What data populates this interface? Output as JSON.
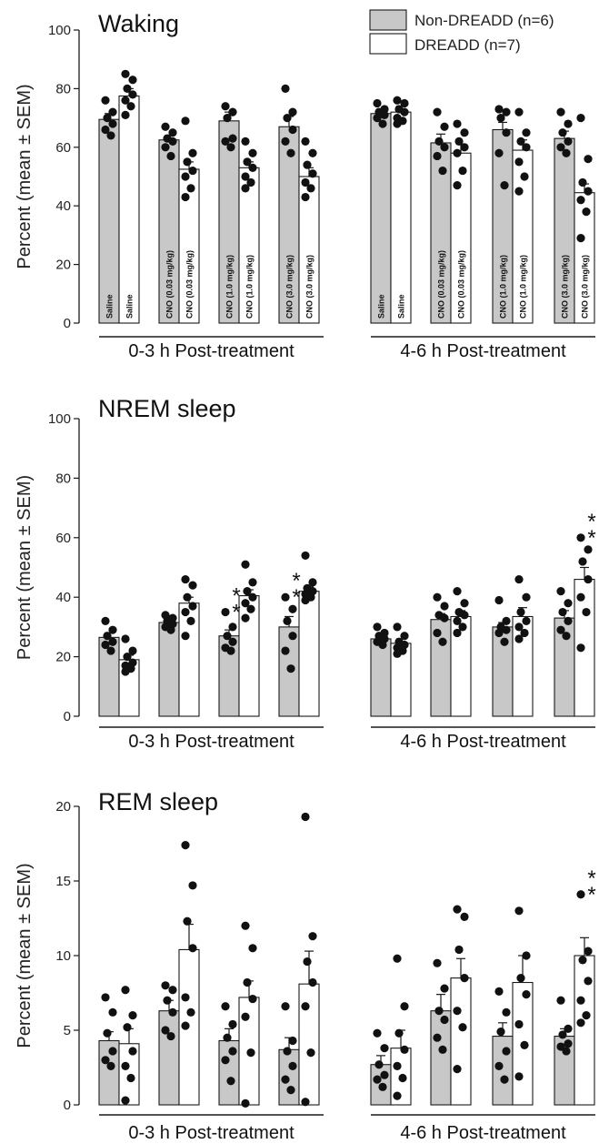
{
  "legend": [
    {
      "key": "ctrl",
      "label": "Non-DREADD (n=6)",
      "color": "#c8c8c8"
    },
    {
      "key": "dreadd",
      "label": "DREADD (n=7)",
      "color": "#ffffff"
    }
  ],
  "group_labels": [
    "0-3 h Post-treatment",
    "4-6 h Post-treatment"
  ],
  "treatments": [
    "Saline",
    "CNO (0.03 mg/kg)",
    "CNO (1.0 mg/kg)",
    "CNO (3.0 mg/kg)"
  ],
  "significance_marker": "**",
  "chart_data": [
    {
      "type": "bar",
      "title": "Waking",
      "ylabel": "Percent (mean ± SEM)",
      "ylim": [
        0,
        100
      ],
      "yticks": [
        0,
        20,
        40,
        60,
        80,
        100
      ],
      "show_treatment_labels": true,
      "series": [
        {
          "name": "Non-DREADD (n=6)",
          "key": "ctrl",
          "values": [
            69.5,
            62.5,
            69,
            67,
            71.5,
            61.5,
            66,
            63
          ],
          "sem": [
            2,
            1.5,
            3,
            3.5,
            1.5,
            3,
            2.5,
            2.5
          ],
          "points": [
            [
              76,
              72,
              70,
              68,
              66,
              64
            ],
            [
              67,
              65,
              63,
              62,
              60,
              57
            ],
            [
              74,
              72,
              70,
              63,
              62,
              60
            ],
            [
              80,
              72,
              70,
              66,
              62,
              58
            ],
            [
              75,
              73,
              72,
              71,
              70,
              68
            ],
            [
              72,
              67,
              62,
              60,
              57,
              52
            ],
            [
              73,
              72,
              70,
              65,
              58,
              47
            ],
            [
              72,
              68,
              65,
              62,
              60,
              58
            ]
          ]
        },
        {
          "name": "DREADD (n=7)",
          "key": "dreadd",
          "values": [
            77.5,
            52.5,
            53,
            50,
            72,
            58,
            59,
            44.5
          ],
          "sem": [
            2.5,
            2.5,
            2,
            3,
            2,
            3,
            3.5,
            3
          ],
          "points": [
            [
              85,
              83,
              80,
              78,
              76,
              74,
              71
            ],
            [
              69,
              58,
              55,
              52,
              50,
              46,
              43
            ],
            [
              62,
              58,
              55,
              53,
              50,
              48,
              46
            ],
            [
              62,
              58,
              54,
              51,
              48,
              46,
              43
            ],
            [
              76,
              75,
              73,
              72,
              70,
              69,
              68
            ],
            [
              68,
              65,
              62,
              60,
              58,
              52,
              47
            ],
            [
              72,
              65,
              62,
              60,
              55,
              50,
              45
            ],
            [
              70,
              56,
              48,
              45,
              42,
              38,
              29
            ]
          ]
        }
      ],
      "significant": [
        false,
        false,
        false,
        false,
        false,
        false,
        false,
        false,
        false,
        false,
        false,
        false,
        false,
        false,
        false,
        false
      ]
    },
    {
      "type": "bar",
      "title": "NREM sleep",
      "ylabel": "Percent (mean ± SEM)",
      "ylim": [
        0,
        100
      ],
      "yticks": [
        0,
        20,
        40,
        60,
        80,
        100
      ],
      "show_treatment_labels": false,
      "series": [
        {
          "name": "Non-DREADD (n=6)",
          "key": "ctrl",
          "values": [
            26.5,
            31.5,
            27,
            30,
            26,
            32.5,
            30,
            33
          ],
          "sem": [
            1.5,
            1,
            2,
            3.5,
            1,
            2,
            1.5,
            2.5
          ],
          "points": [
            [
              32,
              29,
              27,
              25,
              24,
              22
            ],
            [
              34,
              33,
              32,
              31,
              30,
              29
            ],
            [
              35,
              30,
              27,
              25,
              23,
              22
            ],
            [
              40,
              36,
              32,
              27,
              22,
              16
            ],
            [
              30,
              28,
              27,
              26,
              25,
              24
            ],
            [
              40,
              37,
              34,
              33,
              28,
              25
            ],
            [
              39,
              32,
              30,
              29,
              28,
              25
            ],
            [
              42,
              38,
              35,
              32,
              29,
              27
            ]
          ]
        },
        {
          "name": "DREADD (n=7)",
          "key": "dreadd",
          "values": [
            19,
            38,
            40.5,
            42,
            24.5,
            33.5,
            33.5,
            46
          ],
          "sem": [
            1.5,
            2,
            2,
            1.5,
            1.5,
            2,
            3,
            4
          ],
          "points": [
            [
              26,
              22,
              20,
              18,
              17,
              16,
              15
            ],
            [
              46,
              44,
              40,
              37,
              35,
              32,
              27
            ],
            [
              51,
              45,
              42,
              40,
              38,
              36,
              33
            ],
            [
              54,
              45,
              43,
              42,
              41,
              40,
              39
            ],
            [
              30,
              27,
              25,
              24,
              23,
              22,
              21
            ],
            [
              42,
              38,
              35,
              34,
              32,
              30,
              28
            ],
            [
              46,
              40,
              35,
              32,
              30,
              28,
              26
            ],
            [
              60,
              56,
              52,
              46,
              40,
              35,
              23
            ]
          ]
        }
      ],
      "significant": [
        false,
        false,
        false,
        false,
        true,
        false,
        true,
        false,
        false,
        false,
        false,
        false,
        false,
        false,
        false,
        true
      ]
    },
    {
      "type": "bar",
      "title": "REM sleep",
      "ylabel": "Percent (mean ± SEM)",
      "ylim": [
        0,
        20
      ],
      "yticks": [
        0,
        5,
        10,
        15,
        20
      ],
      "show_treatment_labels": false,
      "series": [
        {
          "name": "Non-DREADD (n=6)",
          "key": "ctrl",
          "values": [
            4.3,
            6.3,
            4.3,
            3.7,
            2.7,
            6.3,
            4.6,
            4.6
          ],
          "sem": [
            0.6,
            0.7,
            0.8,
            0.8,
            0.6,
            1.1,
            0.9,
            0.5
          ],
          "points": [
            [
              7.2,
              6.2,
              4.8,
              3.6,
              3,
              2.6
            ],
            [
              8,
              7.7,
              7,
              6.2,
              5,
              4.6
            ],
            [
              6.6,
              5.4,
              4.5,
              3.6,
              3,
              1.6
            ],
            [
              6.6,
              4.3,
              3.6,
              2.6,
              1.7,
              1
            ],
            [
              4.8,
              3.8,
              2.7,
              2,
              1.7,
              1.2
            ],
            [
              9.5,
              7.8,
              6.3,
              5.7,
              4.5,
              3.7
            ],
            [
              7.6,
              6.2,
              4.9,
              3.6,
              2.6,
              1.7
            ],
            [
              7,
              5.1,
              4.7,
              4.1,
              3.9,
              3.6
            ]
          ]
        },
        {
          "name": "DREADD (n=7)",
          "key": "dreadd",
          "values": [
            4.1,
            10.4,
            7.2,
            8.1,
            3.8,
            8.5,
            8.2,
            10
          ],
          "sem": [
            1,
            1.7,
            1.1,
            2.2,
            1.2,
            1.3,
            1.8,
            1.2
          ],
          "points": [
            [
              7.7,
              6,
              5.2,
              3.6,
              2.6,
              1.8,
              0.3
            ],
            [
              17.4,
              14.7,
              12.3,
              10.5,
              7.2,
              6.2,
              5.3
            ],
            [
              12,
              10.5,
              8.2,
              7.1,
              5.9,
              3.5,
              0.1
            ],
            [
              19.3,
              11.3,
              9.6,
              8.2,
              6.6,
              3.5,
              0.2
            ],
            [
              9.8,
              6.6,
              4.8,
              3.7,
              2.6,
              1.8,
              0.6
            ],
            [
              13.1,
              12.6,
              10.4,
              8.5,
              6.3,
              5.2,
              2.4
            ],
            [
              13,
              10,
              8.5,
              7.4,
              5.4,
              4,
              1.9
            ],
            [
              14.1,
              10.3,
              9.7,
              8.3,
              7,
              6,
              5.5
            ]
          ]
        }
      ],
      "significant": [
        false,
        false,
        false,
        false,
        false,
        false,
        false,
        false,
        false,
        false,
        false,
        false,
        false,
        false,
        false,
        true
      ]
    }
  ]
}
